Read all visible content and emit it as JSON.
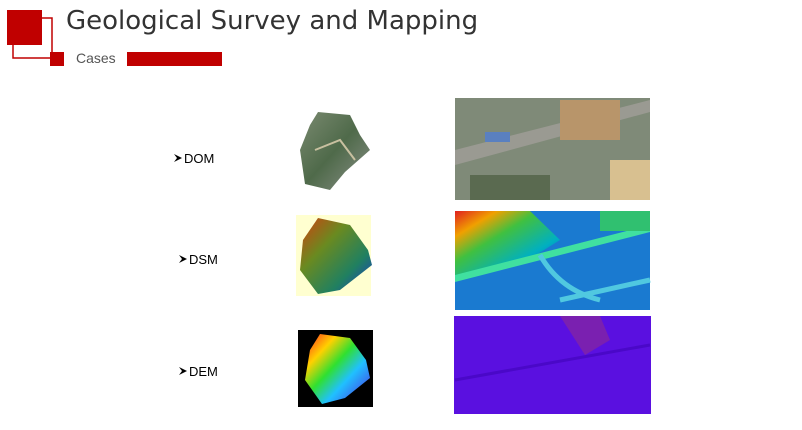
{
  "header": {
    "title": "Geological Survey and Mapping",
    "subtitle": "Cases"
  },
  "items": [
    {
      "label": "DOM"
    },
    {
      "label": "DSM"
    },
    {
      "label": "DEM"
    }
  ]
}
